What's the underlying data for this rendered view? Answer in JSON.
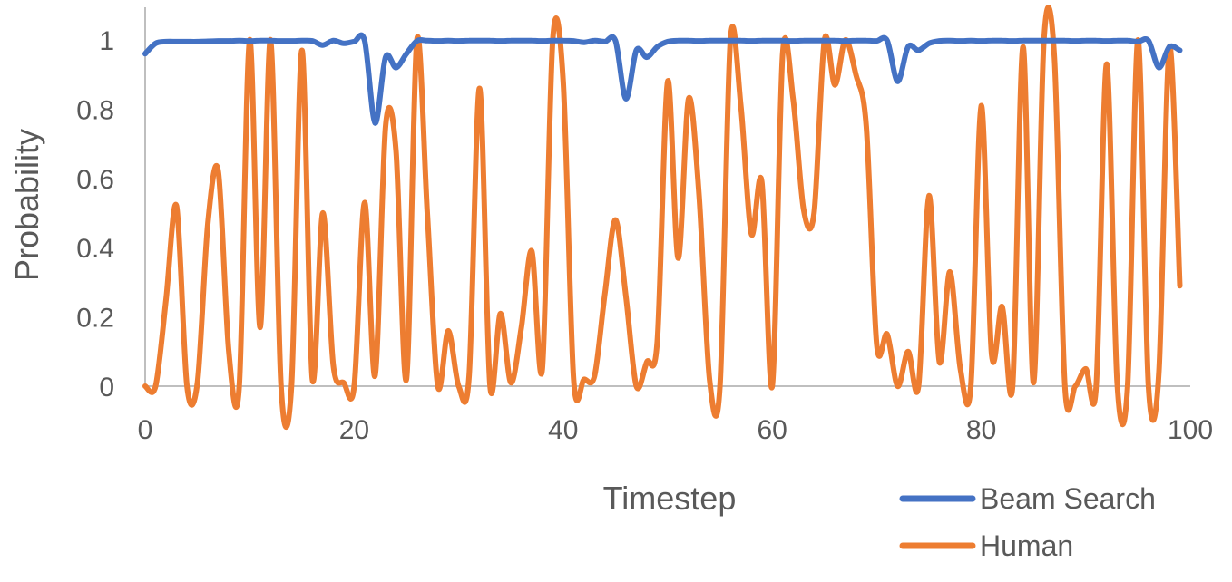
{
  "chart_data": {
    "type": "line",
    "title": "",
    "xlabel": "Timestep",
    "ylabel": "Probability",
    "xlim": [
      0,
      100
    ],
    "ylim": [
      0,
      1
    ],
    "xticks": [
      0,
      20,
      40,
      60,
      80,
      100
    ],
    "yticks": [
      0,
      0.2,
      0.4,
      0.6,
      0.8,
      1
    ],
    "xtick_labels": [
      "0",
      "20",
      "40",
      "60",
      "80",
      "100"
    ],
    "ytick_labels": [
      "0",
      "0.2",
      "0.4",
      "0.6",
      "0.8",
      "1"
    ],
    "grid": false,
    "legend_position": "bottom-right",
    "x": [
      0,
      1,
      2,
      3,
      4,
      5,
      6,
      7,
      8,
      9,
      10,
      11,
      12,
      13,
      14,
      15,
      16,
      17,
      18,
      19,
      20,
      21,
      22,
      23,
      24,
      25,
      26,
      27,
      28,
      29,
      30,
      31,
      32,
      33,
      34,
      35,
      36,
      37,
      38,
      39,
      40,
      41,
      42,
      43,
      44,
      45,
      46,
      47,
      48,
      49,
      50,
      51,
      52,
      53,
      54,
      55,
      56,
      57,
      58,
      59,
      60,
      61,
      62,
      63,
      64,
      65,
      66,
      67,
      68,
      69,
      70,
      71,
      72,
      73,
      74,
      75,
      76,
      77,
      78,
      79,
      80,
      81,
      82,
      83,
      84,
      85,
      86,
      87,
      88,
      89,
      90,
      91,
      92,
      93,
      94,
      95,
      96,
      97,
      98,
      99
    ],
    "series": [
      {
        "name": "Beam Search",
        "color": "#4472C4",
        "values": [
          0.96,
          0.99,
          0.995,
          0.995,
          0.995,
          0.995,
          0.996,
          0.997,
          0.997,
          0.998,
          0.997,
          0.998,
          0.998,
          0.997,
          0.997,
          0.998,
          0.997,
          0.985,
          0.998,
          0.99,
          0.995,
          0.998,
          0.76,
          0.95,
          0.92,
          0.96,
          0.997,
          0.998,
          0.997,
          0.998,
          0.997,
          0.998,
          0.998,
          0.998,
          0.997,
          0.998,
          0.998,
          0.998,
          0.997,
          0.998,
          0.998,
          0.997,
          0.993,
          0.998,
          0.995,
          0.998,
          0.83,
          0.97,
          0.95,
          0.98,
          0.995,
          0.998,
          0.998,
          0.997,
          0.998,
          0.998,
          0.998,
          0.998,
          0.997,
          0.998,
          0.998,
          0.998,
          0.997,
          0.998,
          0.998,
          0.998,
          0.998,
          0.997,
          0.998,
          0.998,
          0.997,
          0.998,
          0.88,
          0.98,
          0.97,
          0.99,
          0.997,
          0.998,
          0.997,
          0.998,
          0.997,
          0.998,
          0.998,
          0.997,
          0.998,
          0.998,
          0.998,
          0.998,
          0.998,
          0.997,
          0.998,
          0.998,
          0.997,
          0.998,
          0.998,
          0.995,
          0.998,
          0.92,
          0.98,
          0.97
        ]
      },
      {
        "name": "Human",
        "color": "#ED7D31",
        "values": [
          0.0,
          0.0,
          0.25,
          0.52,
          0.0,
          0.01,
          0.47,
          0.62,
          0.1,
          0.0,
          1.0,
          0.17,
          1.0,
          0.0,
          0.0,
          0.97,
          0.02,
          0.5,
          0.06,
          0.01,
          0.0,
          0.53,
          0.03,
          0.75,
          0.68,
          0.02,
          1.0,
          0.5,
          0.0,
          0.16,
          0.0,
          0.03,
          0.86,
          0.0,
          0.21,
          0.01,
          0.17,
          0.39,
          0.05,
          1.0,
          0.88,
          0.02,
          0.02,
          0.03,
          0.27,
          0.48,
          0.26,
          0.0,
          0.07,
          0.13,
          0.88,
          0.37,
          0.83,
          0.55,
          0.02,
          0.0,
          1.0,
          0.81,
          0.44,
          0.59,
          0.0,
          0.96,
          0.83,
          0.51,
          0.5,
          1.0,
          0.87,
          1.0,
          0.9,
          0.75,
          0.12,
          0.15,
          0.0,
          0.1,
          0.0,
          0.55,
          0.07,
          0.33,
          0.05,
          0.0,
          0.81,
          0.09,
          0.23,
          0.0,
          0.98,
          0.01,
          1.0,
          0.95,
          0.0,
          0.0,
          0.05,
          0.0,
          0.93,
          0.01,
          0.0,
          1.0,
          0.0,
          0.04,
          0.98,
          0.29
        ]
      }
    ]
  }
}
